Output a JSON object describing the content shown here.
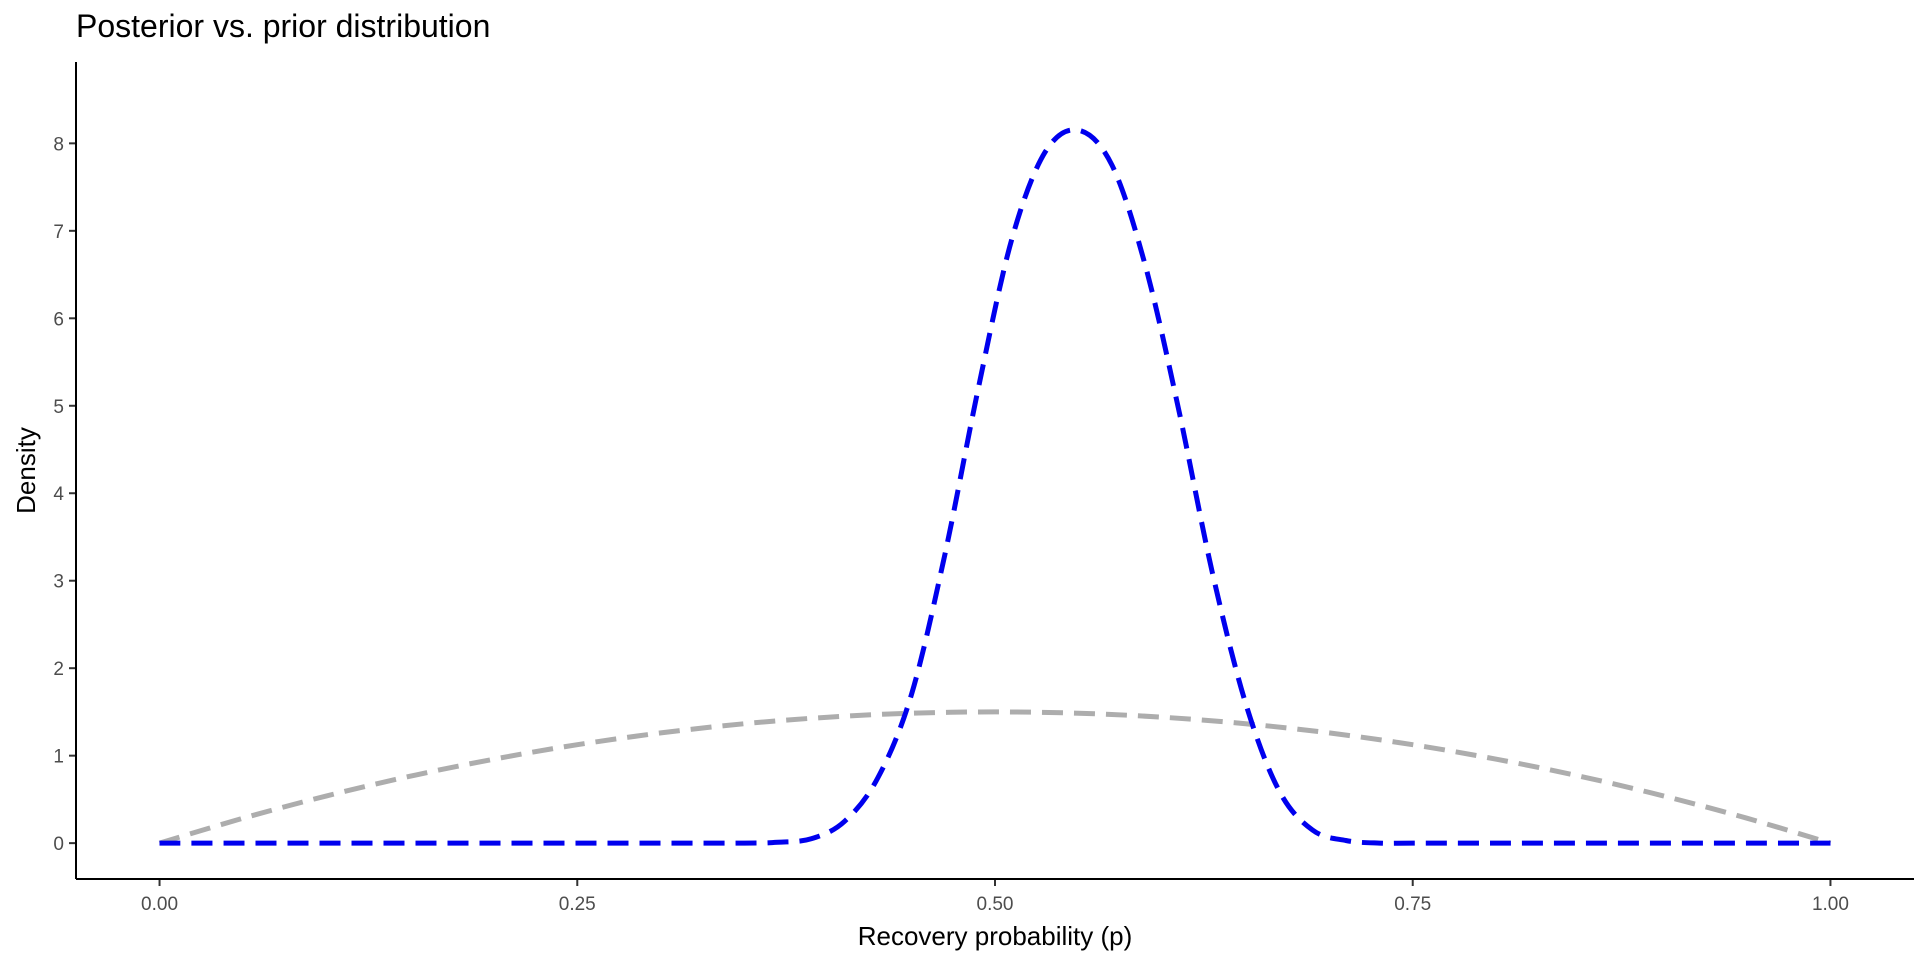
{
  "chart_data": {
    "type": "line",
    "title": "Posterior vs. prior distribution",
    "xlabel": "Recovery probability (p)",
    "ylabel": "Density",
    "xlim": [
      -0.05,
      1.05
    ],
    "ylim": [
      -0.41,
      8.93
    ],
    "x_ticks": [
      0,
      0.25,
      0.5,
      0.75,
      1
    ],
    "x_tick_labels": [
      "0.00",
      "0.25",
      "0.50",
      "0.75",
      "1.00"
    ],
    "y_ticks": [
      0,
      1,
      2,
      3,
      4,
      5,
      6,
      7,
      8
    ],
    "y_tick_labels": [
      "0",
      "1",
      "2",
      "3",
      "4",
      "5",
      "6",
      "7",
      "8"
    ],
    "grid": false,
    "legend": "none",
    "series": [
      {
        "color": "#ADADAD",
        "line_style": "dashed",
        "x": [
          0,
          0.05,
          0.1,
          0.15,
          0.2,
          0.25,
          0.3,
          0.35,
          0.4,
          0.45,
          0.5,
          0.55,
          0.6,
          0.65,
          0.7,
          0.75,
          0.8,
          0.85,
          0.9,
          0.95,
          1
        ],
        "y": [
          0,
          0.285,
          0.54,
          0.765,
          0.96,
          1.125,
          1.26,
          1.365,
          1.44,
          1.485,
          1.5,
          1.485,
          1.44,
          1.365,
          1.26,
          1.125,
          0.96,
          0.765,
          0.54,
          0.285,
          0
        ]
      },
      {
        "color": "#0000EE",
        "line_style": "dashed",
        "x": [
          0,
          0.05,
          0.1,
          0.15,
          0.2,
          0.25,
          0.3,
          0.35,
          0.37,
          0.39,
          0.41,
          0.43,
          0.45,
          0.47,
          0.49,
          0.51,
          0.53,
          0.55,
          0.57,
          0.59,
          0.61,
          0.63,
          0.65,
          0.67,
          0.69,
          0.71,
          0.73,
          0.75,
          0.8,
          0.85,
          0.9,
          0.95,
          1
        ],
        "y": [
          0,
          0,
          0,
          0,
          0,
          0,
          0,
          0,
          0.01,
          0.05,
          0.25,
          0.75,
          1.7,
          3.3,
          5.2,
          6.9,
          7.9,
          8.15,
          7.75,
          6.6,
          4.95,
          3.1,
          1.6,
          0.6,
          0.15,
          0.03,
          0,
          0,
          0,
          0,
          0,
          0,
          0
        ]
      }
    ]
  }
}
